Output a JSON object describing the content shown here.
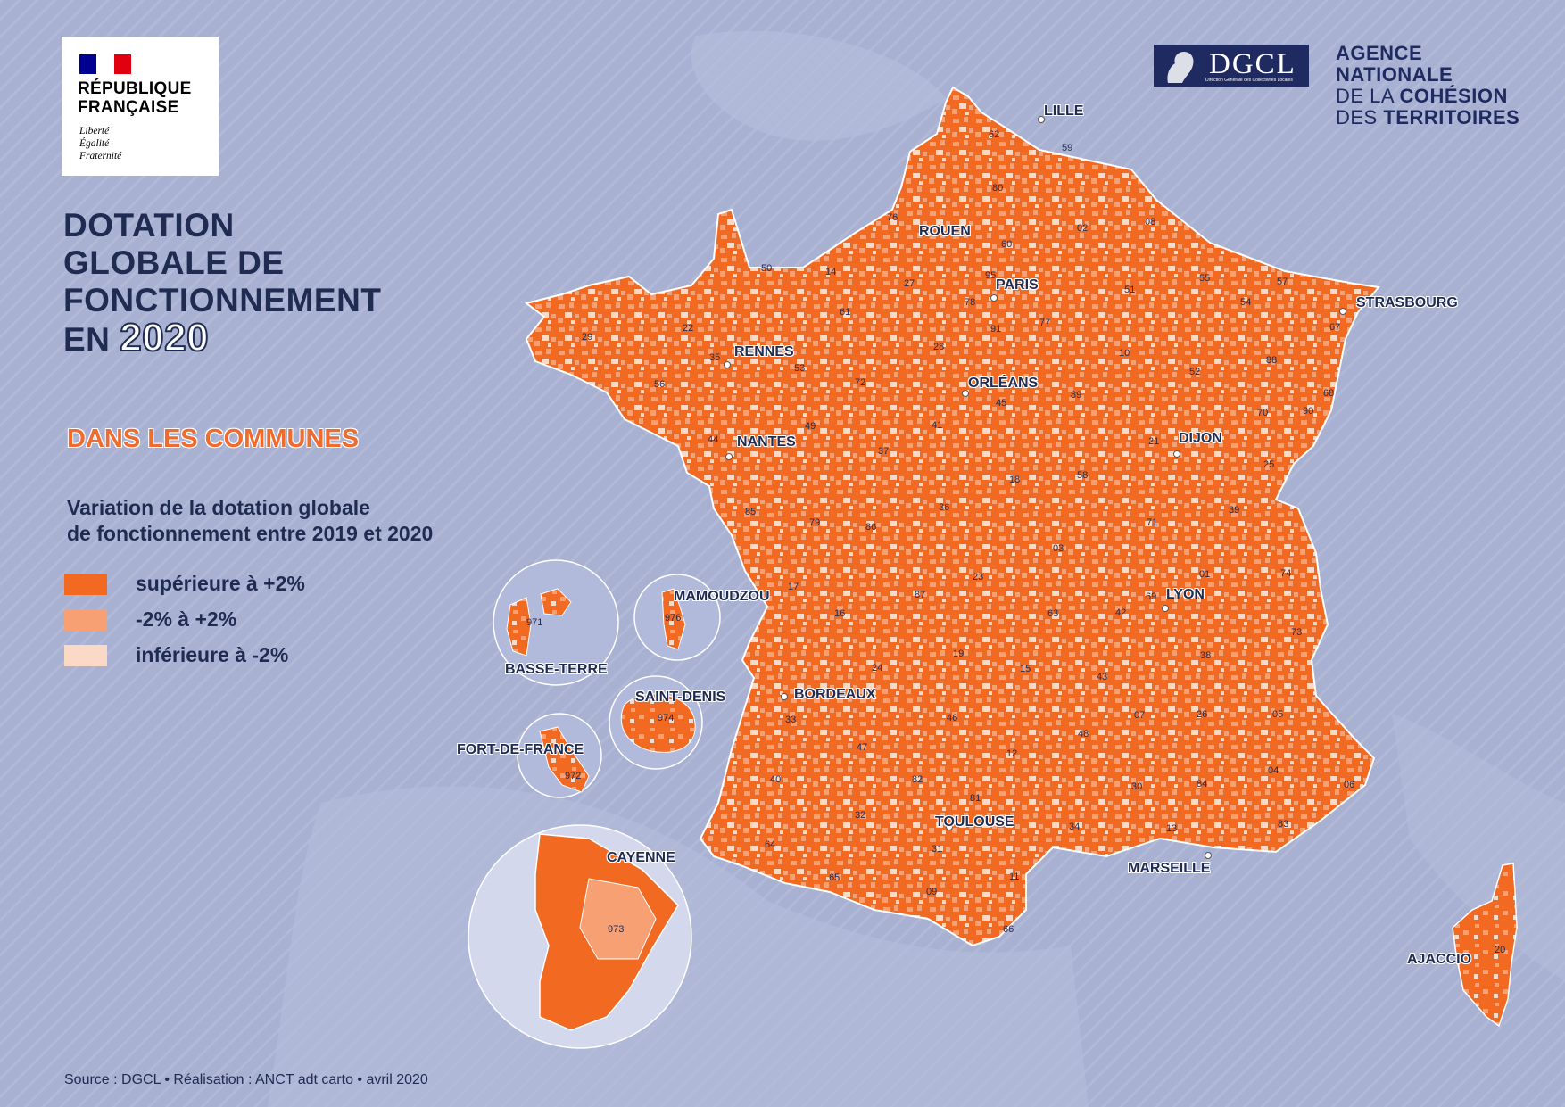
{
  "logo": {
    "name_line1": "RÉPUBLIQUE",
    "name_line2": "FRANÇAISE",
    "motto_line1": "Liberté",
    "motto_line2": "Égalité",
    "motto_line3": "Fraternité",
    "flag_colors": [
      "#000091",
      "#ffffff",
      "#e1000f"
    ]
  },
  "title": {
    "line1": "DOTATION",
    "line2": "GLOBALE DE",
    "line3": "FONCTIONNEMENT",
    "line4_prefix": "EN",
    "year": "2020"
  },
  "subtitle": "DANS LES COMMUNES",
  "legend": {
    "title_line1": "Variation de la dotation globale",
    "title_line2": "de fonctionnement entre 2019 et 2020",
    "items": [
      {
        "label": "supérieure à +2%",
        "color": "#f26a22"
      },
      {
        "label": "-2% à +2%",
        "color": "#f7a073"
      },
      {
        "label": "inférieure à -2%",
        "color": "#fbd9c7"
      }
    ]
  },
  "partners": {
    "dgcl": "DGCL",
    "dgcl_sub": "Direction Générale des Collectivités Locales",
    "anct_line1": "AGENCE",
    "anct_line2": "NATIONALE",
    "anct_line3_a": "DE LA ",
    "anct_line3_b": "COHÉSION",
    "anct_line4_a": "DES ",
    "anct_line4_b": "TERRITOIRES"
  },
  "cities": {
    "lille": "LILLE",
    "rouen": "ROUEN",
    "paris": "PARIS",
    "strasbourg": "STRASBOURG",
    "rennes": "RENNES",
    "orleans": "ORLÉANS",
    "nantes": "NANTES",
    "dijon": "DIJON",
    "lyon": "LYON",
    "bordeaux": "BORDEAUX",
    "toulouse": "TOULOUSE",
    "marseille": "MARSEILLE",
    "ajaccio": "AJACCIO",
    "mamoudzou": "MAMOUDZOU",
    "basse_terre": "BASSE-TERRE",
    "saint_denis": "SAINT-DENIS",
    "fort_de_france": "FORT-DE-FRANCE",
    "cayenne": "CAYENNE"
  },
  "departments": {
    "d62": "62",
    "d59": "59",
    "d80": "80",
    "d76": "76",
    "d02": "02",
    "d08": "08",
    "d60": "60",
    "d14": "14",
    "d27": "27",
    "d95": "95",
    "d50": "50",
    "d51": "51",
    "d55": "55",
    "d57": "57",
    "d54": "54",
    "d67": "67",
    "d78": "78",
    "d61": "61",
    "d22": "22",
    "d29": "29",
    "d91": "91",
    "d77": "77",
    "d35": "35",
    "d53": "53",
    "d28": "28",
    "d10": "10",
    "d88": "88",
    "d52": "52",
    "d56": "56",
    "d72": "72",
    "d68": "68",
    "d45": "45",
    "d89": "89",
    "d70": "70",
    "d90": "90",
    "d49": "49",
    "d44": "44",
    "d41": "41",
    "d21": "21",
    "d37": "37",
    "d25": "25",
    "d18": "18",
    "d58": "58",
    "d85": "85",
    "d36": "36",
    "d39": "39",
    "d79": "79",
    "d86": "86",
    "d71": "71",
    "d03": "03",
    "d01": "01",
    "d74": "74",
    "d23": "23",
    "d17": "17",
    "d87": "87",
    "d16": "16",
    "d63": "63",
    "d42": "42",
    "d69": "69",
    "d73": "73",
    "d38": "38",
    "d19": "19",
    "d24": "24",
    "d15": "15",
    "d43": "43",
    "d05": "05",
    "d33": "33",
    "d46": "46",
    "d07": "07",
    "d26": "26",
    "d47": "47",
    "d48": "48",
    "d12": "12",
    "d40": "40",
    "d82": "82",
    "d04": "04",
    "d84": "84",
    "d30": "30",
    "d06": "06",
    "d81": "81",
    "d32": "32",
    "d34": "34",
    "d13": "13",
    "d83": "83",
    "d64": "64",
    "d31": "31",
    "d65": "65",
    "d11": "11",
    "d09": "09",
    "d66": "66",
    "d20": "20",
    "d971": "971",
    "d976": "976",
    "d974": "974",
    "d972": "972",
    "d973": "973"
  },
  "source": "Source : DGCL • Réalisation : ANCT adt carto • avril 2020"
}
